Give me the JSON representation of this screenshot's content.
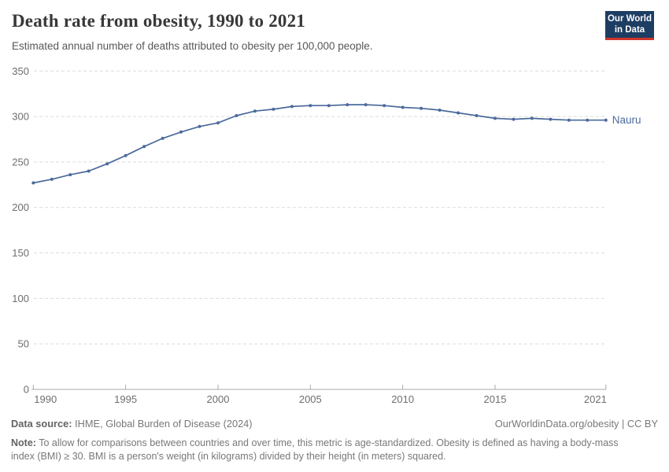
{
  "header": {
    "title": "Death rate from obesity, 1990 to 2021",
    "subtitle": "Estimated annual number of deaths attributed to obesity per 100,000 people.",
    "logo": {
      "line1": "Our World",
      "line2": "in Data",
      "bg_color": "#1d3d63",
      "bar_color": "#d0342c"
    }
  },
  "chart_data": {
    "type": "line",
    "title": "Death rate from obesity, 1990 to 2021",
    "xlabel": "",
    "ylabel": "",
    "x": [
      1990,
      1991,
      1992,
      1993,
      1994,
      1995,
      1996,
      1997,
      1998,
      1999,
      2000,
      2001,
      2002,
      2003,
      2004,
      2005,
      2006,
      2007,
      2008,
      2009,
      2010,
      2011,
      2012,
      2013,
      2014,
      2015,
      2016,
      2017,
      2018,
      2019,
      2020,
      2021
    ],
    "series": [
      {
        "name": "Nauru",
        "color": "#4C6A9C",
        "values": [
          227,
          231,
          236,
          240,
          248,
          257,
          267,
          276,
          283,
          289,
          293,
          301,
          306,
          308,
          311,
          312,
          312,
          313,
          313,
          312,
          310,
          309,
          307,
          304,
          301,
          298,
          297,
          298,
          297,
          296,
          296,
          296
        ]
      }
    ],
    "ylim": [
      0,
      350
    ],
    "yticks": [
      0,
      50,
      100,
      150,
      200,
      250,
      300,
      350
    ],
    "xticks": [
      1990,
      1995,
      2000,
      2005,
      2010,
      2015,
      2021
    ],
    "grid": "horizontal-dashed",
    "legend_position": "end-of-line",
    "grid_color": "#dcdcdc",
    "axis_color": "#a9a9a9",
    "tick_label_color": "#6e6e6e"
  },
  "footer": {
    "source_label": "Data source:",
    "source_text": " IHME, Global Burden of Disease (2024)",
    "link_text": "OurWorldinData.org/obesity | CC BY",
    "note_label": "Note:",
    "note_text": " To allow for comparisons between countries and over time, this metric is age-standardized. Obesity is defined as having a body-mass index (BMI) ≥ 30. BMI is a person's weight (in kilograms) divided by their height (in meters) squared."
  }
}
